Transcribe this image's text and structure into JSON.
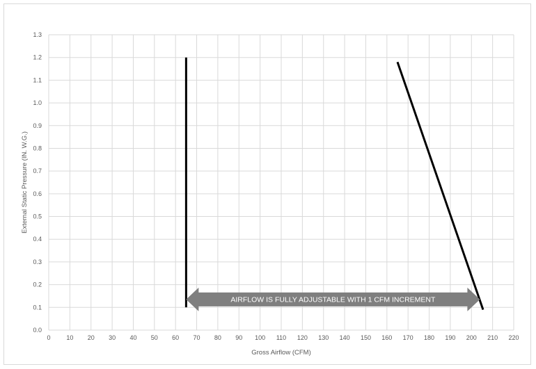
{
  "chart_data": {
    "type": "line",
    "title": "",
    "xlabel": "Gross Airflow (CFM)",
    "ylabel": "External Static Pressure (IN. W.G.)",
    "xlim": [
      0,
      220
    ],
    "ylim": [
      0,
      1.3
    ],
    "x_ticks": [
      "0",
      "10",
      "20",
      "30",
      "40",
      "50",
      "60",
      "70",
      "80",
      "90",
      "100",
      "110",
      "120",
      "130",
      "140",
      "150",
      "160",
      "170",
      "180",
      "190",
      "200",
      "210",
      "220"
    ],
    "y_ticks": [
      "0.0",
      "0.1",
      "0.2",
      "0.3",
      "0.4",
      "0.5",
      "0.6",
      "0.7",
      "0.8",
      "0.9",
      "1.0",
      "1.1",
      "1.2",
      "1.3"
    ],
    "grid": true,
    "series": [
      {
        "points": [
          [
            65,
            0.1
          ],
          [
            65,
            1.2
          ]
        ],
        "color": "#000000"
      },
      {
        "points": [
          [
            165,
            1.18
          ],
          [
            205.5,
            0.09
          ]
        ],
        "color": "#000000"
      }
    ],
    "annotation": {
      "text": "AIRFLOW IS FULLY ADJUSTABLE WITH 1 CFM INCREMENT",
      "x_range": [
        65,
        204
      ],
      "y": 0.135,
      "color": "#7f7f7f"
    }
  }
}
